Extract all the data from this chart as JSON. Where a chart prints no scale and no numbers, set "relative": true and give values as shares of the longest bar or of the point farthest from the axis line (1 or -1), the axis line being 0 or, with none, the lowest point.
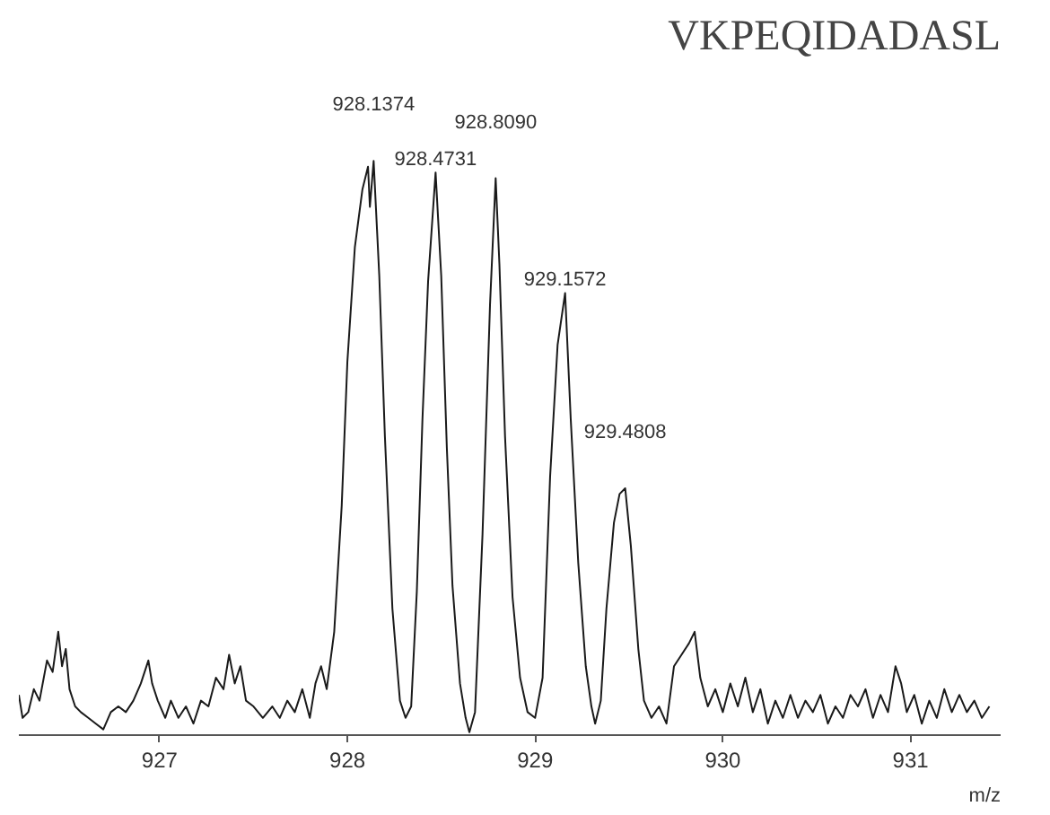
{
  "chart_data": {
    "type": "line",
    "title": "VKPEQIDADASL",
    "xlabel": "m/z",
    "relative": true,
    "grid": false,
    "marker": "none",
    "line_style": "solid",
    "xlim": [
      926.25,
      931.48
    ],
    "xticks": [
      927,
      928,
      929,
      930,
      931
    ],
    "annotations": [
      {
        "text": "928.1374",
        "x": 928.14,
        "y": 1.0
      },
      {
        "text": "928.4731",
        "x": 928.47,
        "y": 0.98
      },
      {
        "text": "928.8090",
        "x": 928.79,
        "y": 0.97
      },
      {
        "text": "929.1572",
        "x": 929.16,
        "y": 0.77
      },
      {
        "text": "929.4808",
        "x": 929.48,
        "y": 0.43
      }
    ],
    "series": [
      {
        "color": "#1a1a1a",
        "x": [
          926.25,
          926.27,
          926.3,
          926.33,
          926.36,
          926.4,
          926.43,
          926.46,
          926.48,
          926.5,
          926.52,
          926.55,
          926.58,
          926.62,
          926.66,
          926.7,
          926.74,
          926.78,
          926.82,
          926.86,
          926.9,
          926.94,
          926.96,
          926.99,
          927.03,
          927.06,
          927.1,
          927.14,
          927.18,
          927.22,
          927.26,
          927.3,
          927.34,
          927.37,
          927.4,
          927.43,
          927.46,
          927.5,
          927.55,
          927.6,
          927.64,
          927.68,
          927.72,
          927.76,
          927.8,
          927.83,
          927.86,
          927.89,
          927.93,
          927.97,
          928.0,
          928.04,
          928.08,
          928.11,
          928.12,
          928.14,
          928.17,
          928.2,
          928.24,
          928.28,
          928.31,
          928.34,
          928.37,
          928.4,
          928.43,
          928.47,
          928.5,
          928.53,
          928.56,
          928.6,
          928.63,
          928.65,
          928.68,
          928.72,
          928.76,
          928.79,
          928.81,
          928.84,
          928.88,
          928.92,
          928.96,
          929.0,
          929.04,
          929.08,
          929.12,
          929.16,
          929.19,
          929.23,
          929.27,
          929.3,
          929.32,
          929.35,
          929.38,
          929.42,
          929.45,
          929.48,
          929.51,
          929.55,
          929.58,
          929.62,
          929.66,
          929.7,
          929.74,
          929.78,
          929.82,
          929.85,
          929.88,
          929.92,
          929.96,
          930.0,
          930.04,
          930.08,
          930.12,
          930.16,
          930.2,
          930.24,
          930.28,
          930.32,
          930.36,
          930.4,
          930.44,
          930.48,
          930.52,
          930.56,
          930.6,
          930.64,
          930.68,
          930.72,
          930.76,
          930.8,
          930.84,
          930.88,
          930.92,
          930.95,
          930.98,
          931.02,
          931.06,
          931.1,
          931.14,
          931.18,
          931.22,
          931.26,
          931.3,
          931.34,
          931.38,
          931.42
        ],
        "values": [
          0.07,
          0.03,
          0.04,
          0.08,
          0.06,
          0.13,
          0.11,
          0.18,
          0.12,
          0.15,
          0.08,
          0.05,
          0.04,
          0.03,
          0.02,
          0.01,
          0.04,
          0.05,
          0.04,
          0.06,
          0.09,
          0.13,
          0.09,
          0.06,
          0.03,
          0.06,
          0.03,
          0.05,
          0.02,
          0.06,
          0.05,
          0.1,
          0.08,
          0.14,
          0.09,
          0.12,
          0.06,
          0.05,
          0.03,
          0.05,
          0.03,
          0.06,
          0.04,
          0.08,
          0.03,
          0.09,
          0.12,
          0.08,
          0.18,
          0.4,
          0.65,
          0.85,
          0.95,
          0.99,
          0.92,
          1.0,
          0.8,
          0.52,
          0.22,
          0.06,
          0.03,
          0.05,
          0.25,
          0.55,
          0.79,
          0.98,
          0.8,
          0.5,
          0.26,
          0.09,
          0.03,
          0.005,
          0.04,
          0.35,
          0.75,
          0.97,
          0.82,
          0.52,
          0.24,
          0.1,
          0.04,
          0.03,
          0.1,
          0.45,
          0.68,
          0.77,
          0.55,
          0.3,
          0.12,
          0.05,
          0.02,
          0.06,
          0.22,
          0.37,
          0.42,
          0.43,
          0.33,
          0.15,
          0.06,
          0.03,
          0.05,
          0.02,
          0.12,
          0.14,
          0.16,
          0.18,
          0.1,
          0.05,
          0.08,
          0.04,
          0.09,
          0.05,
          0.1,
          0.04,
          0.08,
          0.02,
          0.06,
          0.03,
          0.07,
          0.03,
          0.06,
          0.04,
          0.07,
          0.02,
          0.05,
          0.03,
          0.07,
          0.05,
          0.08,
          0.03,
          0.07,
          0.04,
          0.12,
          0.09,
          0.04,
          0.07,
          0.02,
          0.06,
          0.03,
          0.08,
          0.04,
          0.07,
          0.04,
          0.06,
          0.03,
          0.05
        ]
      }
    ]
  }
}
